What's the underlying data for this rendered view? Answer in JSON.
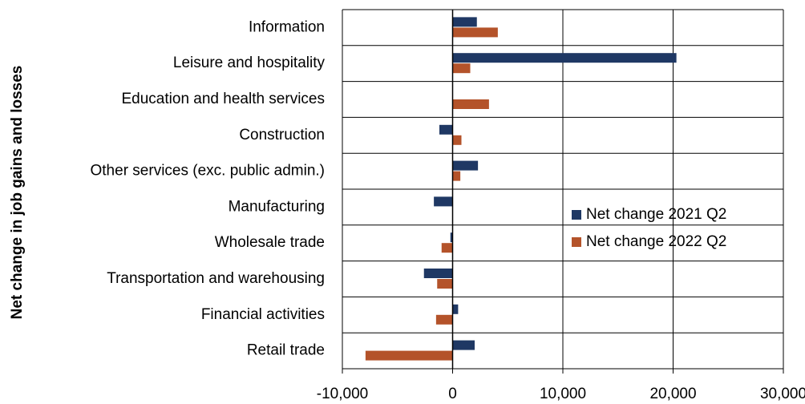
{
  "chart_data": {
    "type": "hbar",
    "y_axis_label": "Net change in job gains and losses",
    "categories": [
      "Information",
      "Leisure and hospitality",
      "Education and health services",
      "Construction",
      "Other services (exc. public admin.)",
      "Manufacturing",
      "Wholesale trade",
      "Transportation and warehousing",
      "Financial activities",
      "Retail trade"
    ],
    "series": [
      {
        "name": "Net change 2021 Q2",
        "color": "#1f3864",
        "values": [
          2200,
          20300,
          0,
          -1200,
          2300,
          -1700,
          -200,
          -2600,
          500,
          2000
        ]
      },
      {
        "name": "Net change 2022 Q2",
        "color": "#b4532a",
        "values": [
          4100,
          1600,
          3300,
          800,
          700,
          0,
          -1000,
          -1400,
          -1500,
          -7900
        ]
      }
    ],
    "xlim": [
      -10000,
      30000
    ],
    "xticks": [
      {
        "value": -10000,
        "label": "-10,000"
      },
      0,
      {
        "value": 10000,
        "label": "10,000"
      },
      {
        "value": 20000,
        "label": "20,000"
      },
      {
        "value": 30000,
        "label": "30,000"
      }
    ],
    "grid": true,
    "legend": "right"
  }
}
